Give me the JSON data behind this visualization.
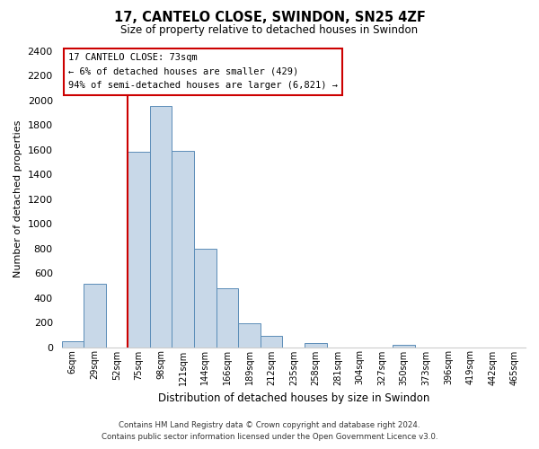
{
  "title": "17, CANTELO CLOSE, SWINDON, SN25 4ZF",
  "subtitle": "Size of property relative to detached houses in Swindon",
  "xlabel": "Distribution of detached houses by size in Swindon",
  "ylabel": "Number of detached properties",
  "bin_labels": [
    "6sqm",
    "29sqm",
    "52sqm",
    "75sqm",
    "98sqm",
    "121sqm",
    "144sqm",
    "166sqm",
    "189sqm",
    "212sqm",
    "235sqm",
    "258sqm",
    "281sqm",
    "304sqm",
    "327sqm",
    "350sqm",
    "373sqm",
    "396sqm",
    "419sqm",
    "442sqm",
    "465sqm"
  ],
  "bar_heights": [
    50,
    510,
    0,
    1580,
    1950,
    1590,
    800,
    480,
    190,
    90,
    0,
    35,
    0,
    0,
    0,
    20,
    0,
    0,
    0,
    0,
    0
  ],
  "bar_color": "#c8d8e8",
  "bar_edge_color": "#5b8db8",
  "vline_x": 3,
  "vline_color": "#cc0000",
  "annotation_title": "17 CANTELO CLOSE: 73sqm",
  "annotation_line1": "← 6% of detached houses are smaller (429)",
  "annotation_line2": "94% of semi-detached houses are larger (6,821) →",
  "annotation_box_color": "#ffffff",
  "annotation_box_edge": "#cc0000",
  "ylim": [
    0,
    2400
  ],
  "yticks": [
    0,
    200,
    400,
    600,
    800,
    1000,
    1200,
    1400,
    1600,
    1800,
    2000,
    2200,
    2400
  ],
  "footer_line1": "Contains HM Land Registry data © Crown copyright and database right 2024.",
  "footer_line2": "Contains public sector information licensed under the Open Government Licence v3.0.",
  "bg_color": "#ffffff"
}
